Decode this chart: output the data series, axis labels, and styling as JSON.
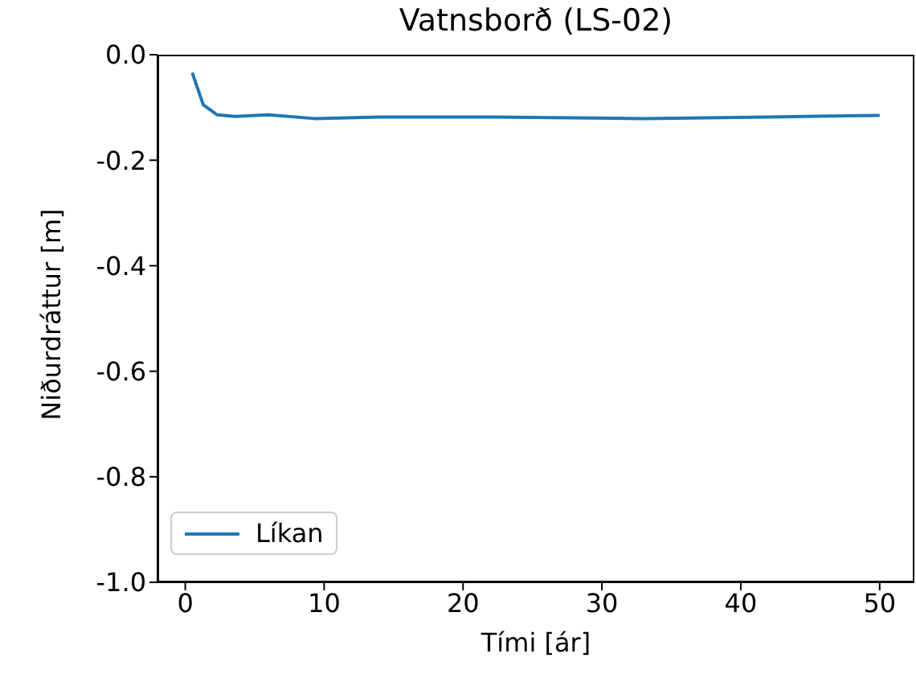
{
  "chart_data": {
    "type": "line",
    "title": "Vatnsborð (LS-02)",
    "xlabel": "Tími [ár]",
    "ylabel": "Niðurdráttur [m]",
    "x": [
      0.5,
      1.3,
      2.3,
      3.6,
      6,
      9.3,
      14,
      22,
      33,
      42,
      50
    ],
    "series": [
      {
        "name": "Líkan",
        "color": "#1f77b4",
        "values": [
          -0.034,
          -0.095,
          -0.114,
          -0.117,
          -0.114,
          -0.121,
          -0.118,
          -0.118,
          -0.121,
          -0.118,
          -0.115
        ]
      }
    ],
    "xlim": [
      -2,
      52.5
    ],
    "xticks": [
      0,
      10,
      20,
      30,
      40,
      50
    ],
    "ylim": [
      -1.0,
      0.0
    ],
    "yticks": [
      {
        "value": -1.0,
        "label": "-1.0"
      },
      -0.8,
      -0.6,
      -0.4,
      -0.2,
      {
        "value": 0.0,
        "label": "0.0"
      }
    ],
    "legend": "bottom left",
    "grid": false,
    "marker": "none",
    "line_style": "solid"
  }
}
